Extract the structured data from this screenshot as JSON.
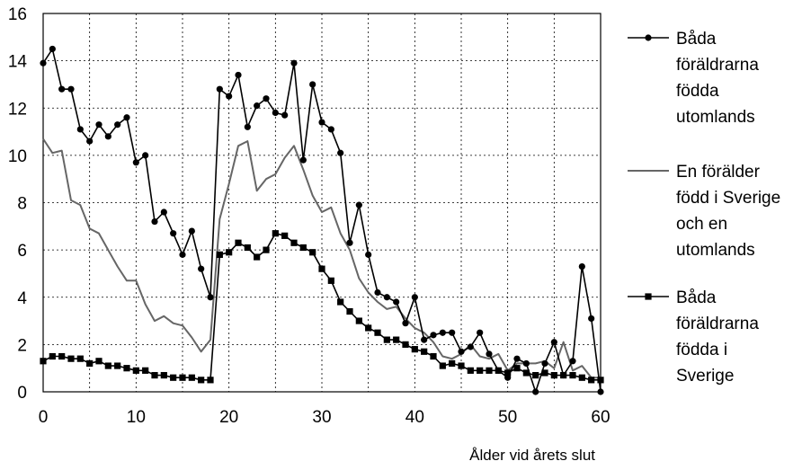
{
  "chart_data": {
    "type": "line",
    "title": "",
    "xlabel": "Ålder vid årets slut",
    "ylabel": "",
    "xlim": [
      0,
      60
    ],
    "ylim": [
      0,
      16
    ],
    "x_ticks": [
      0,
      10,
      20,
      30,
      40,
      50,
      60
    ],
    "y_ticks": [
      0,
      2,
      4,
      6,
      8,
      10,
      12,
      14,
      16
    ],
    "grid": true,
    "legend_position": "right",
    "x": [
      0,
      1,
      2,
      3,
      4,
      5,
      6,
      7,
      8,
      9,
      10,
      11,
      12,
      13,
      14,
      15,
      16,
      17,
      18,
      19,
      20,
      21,
      22,
      23,
      24,
      25,
      26,
      27,
      28,
      29,
      30,
      31,
      32,
      33,
      34,
      35,
      36,
      37,
      38,
      39,
      40,
      41,
      42,
      43,
      44,
      45,
      46,
      47,
      48,
      49,
      50,
      51,
      52,
      53,
      54,
      55,
      56,
      57,
      58,
      59,
      60
    ],
    "series": [
      {
        "name": "Båda föräldrarna födda utomlands",
        "legend_lines": [
          "Båda",
          "föräldrarna",
          "födda",
          "utomlands"
        ],
        "marker": "circle",
        "color": "#000000",
        "values": [
          13.9,
          14.5,
          12.8,
          12.8,
          11.1,
          10.6,
          11.3,
          10.8,
          11.3,
          11.6,
          9.7,
          10.0,
          7.2,
          7.6,
          6.7,
          5.8,
          6.8,
          5.2,
          4.0,
          12.8,
          12.5,
          13.4,
          11.2,
          12.1,
          12.4,
          11.8,
          11.7,
          13.9,
          9.8,
          13.0,
          11.4,
          11.1,
          10.1,
          6.3,
          7.9,
          5.8,
          4.2,
          4.0,
          3.8,
          2.9,
          4.0,
          2.2,
          2.4,
          2.5,
          2.5,
          1.7,
          1.9,
          2.5,
          1.6,
          0.9,
          0.6,
          1.4,
          1.2,
          0.0,
          1.2,
          2.1,
          0.7,
          1.3,
          5.3,
          3.1,
          0.0
        ]
      },
      {
        "name": "En förälder född i Sverige och en utomlands",
        "legend_lines": [
          "En förälder",
          "född i Sverige",
          "och en",
          "utomlands"
        ],
        "marker": "none",
        "color": "#666666",
        "values": [
          10.7,
          10.1,
          10.2,
          8.1,
          7.9,
          6.9,
          6.7,
          6.0,
          5.3,
          4.7,
          4.7,
          3.7,
          3.0,
          3.2,
          2.9,
          2.8,
          2.3,
          1.7,
          2.2,
          7.3,
          8.8,
          10.4,
          10.6,
          8.5,
          9.0,
          9.2,
          9.9,
          10.4,
          9.4,
          8.3,
          7.6,
          7.8,
          6.7,
          6.0,
          4.8,
          4.2,
          3.8,
          3.5,
          3.6,
          3.1,
          2.7,
          2.5,
          2.1,
          1.5,
          1.4,
          1.6,
          2.0,
          1.5,
          1.4,
          1.6,
          0.9,
          1.2,
          1.2,
          1.2,
          1.3,
          1.0,
          2.1,
          0.9,
          1.1,
          0.6,
          0.6
        ]
      },
      {
        "name": "Båda föräldrarna födda i Sverige",
        "legend_lines": [
          "Båda",
          "föräldrarna",
          "födda i",
          "Sverige"
        ],
        "marker": "square",
        "color": "#000000",
        "values": [
          1.3,
          1.5,
          1.5,
          1.4,
          1.4,
          1.2,
          1.3,
          1.1,
          1.1,
          1.0,
          0.9,
          0.9,
          0.7,
          0.7,
          0.6,
          0.6,
          0.6,
          0.5,
          0.5,
          5.8,
          5.9,
          6.3,
          6.1,
          5.7,
          6.0,
          6.7,
          6.6,
          6.3,
          6.1,
          5.9,
          5.2,
          4.7,
          3.8,
          3.4,
          3.0,
          2.7,
          2.5,
          2.2,
          2.2,
          2.0,
          1.8,
          1.7,
          1.5,
          1.1,
          1.2,
          1.1,
          0.9,
          0.9,
          0.9,
          0.9,
          0.8,
          1.0,
          0.8,
          0.7,
          0.8,
          0.7,
          0.7,
          0.7,
          0.6,
          0.5,
          0.5
        ]
      }
    ]
  }
}
